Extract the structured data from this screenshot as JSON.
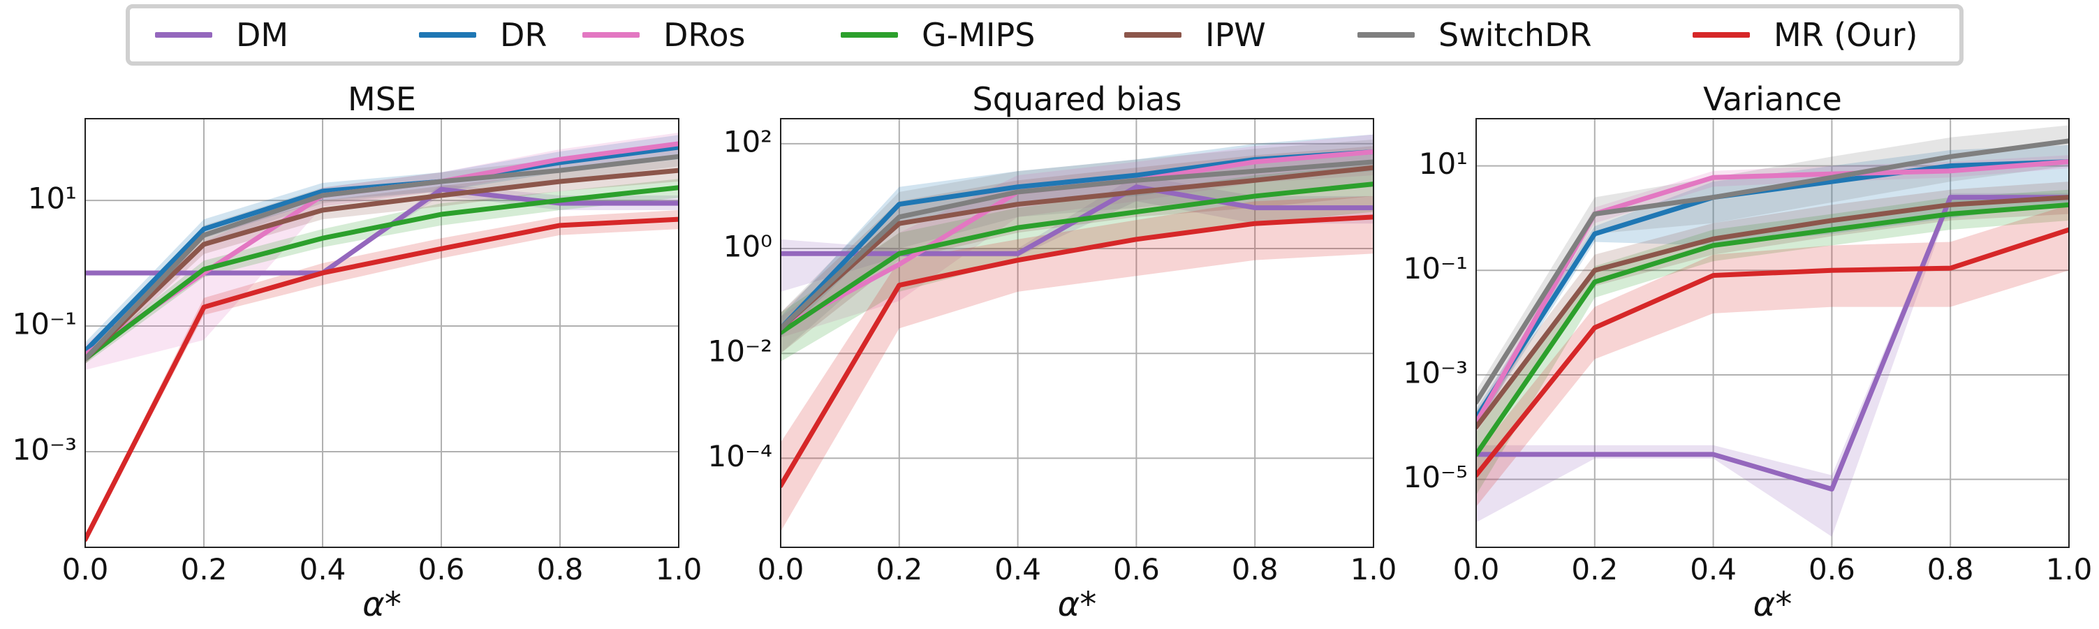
{
  "legend": {
    "items": [
      {
        "label": "DM",
        "color": "#9467bd"
      },
      {
        "label": "DR",
        "color": "#1f77b4"
      },
      {
        "label": "DRos",
        "color": "#e377c2"
      },
      {
        "label": "G-MIPS",
        "color": "#2ca02c"
      },
      {
        "label": "IPW",
        "color": "#8c564b"
      },
      {
        "label": "SwitchDR",
        "color": "#7f7f7f"
      },
      {
        "label": "MR (Our)",
        "color": "#d62728"
      }
    ]
  },
  "chart_data": [
    {
      "type": "line",
      "title": "MSE",
      "xlabel": "α*",
      "ylabel": "",
      "yscale": "log",
      "x": [
        0.0,
        0.2,
        0.4,
        0.6,
        0.8,
        1.0
      ],
      "xticks": [
        "0.0",
        "0.2",
        "0.4",
        "0.6",
        "0.8",
        "1.0"
      ],
      "xlim": [
        0,
        1
      ],
      "ylim": [
        3e-05,
        200
      ],
      "yticks": [
        {
          "value": 0.001,
          "label": "10⁻³"
        },
        {
          "value": 0.1,
          "label": "10⁻¹"
        },
        {
          "value": 10,
          "label": "10¹"
        }
      ],
      "grid": true,
      "series": [
        {
          "name": "DM",
          "values": [
            0.7,
            0.7,
            0.7,
            15,
            9,
            9
          ],
          "band": [
            [
              0.7,
              0.7
            ],
            [
              0.7,
              0.7
            ],
            [
              0.7,
              0.7
            ],
            [
              12,
              18
            ],
            [
              7,
              12
            ],
            [
              7,
              12
            ]
          ]
        },
        {
          "name": "DR",
          "values": [
            0.04,
            3.5,
            14,
            20,
            40,
            70
          ],
          "band": [
            [
              0.03,
              0.055
            ],
            [
              2.5,
              5
            ],
            [
              10,
              19
            ],
            [
              14,
              28
            ],
            [
              28,
              60
            ],
            [
              45,
              110
            ]
          ]
        },
        {
          "name": "DRos",
          "values": [
            0.035,
            0.7,
            12,
            20,
            45,
            80
          ],
          "band": [
            [
              0.02,
              0.05
            ],
            [
              0.06,
              2.2
            ],
            [
              8,
              16
            ],
            [
              14,
              28
            ],
            [
              32,
              65
            ],
            [
              55,
              120
            ]
          ]
        },
        {
          "name": "G-MIPS",
          "values": [
            0.03,
            0.8,
            2.5,
            6,
            10,
            16
          ],
          "band": [
            [
              0.025,
              0.035
            ],
            [
              0.6,
              1.1
            ],
            [
              1.8,
              3.5
            ],
            [
              4,
              9
            ],
            [
              7,
              14
            ],
            [
              11,
              22
            ]
          ]
        },
        {
          "name": "IPW",
          "values": [
            0.03,
            2,
            7,
            12,
            20,
            30
          ],
          "band": [
            [
              0.025,
              0.04
            ],
            [
              1.4,
              2.8
            ],
            [
              5,
              10
            ],
            [
              8,
              17
            ],
            [
              14,
              28
            ],
            [
              20,
              45
            ]
          ]
        },
        {
          "name": "SwitchDR",
          "values": [
            0.03,
            2.8,
            12,
            20,
            30,
            50
          ],
          "band": [
            [
              0.025,
              0.04
            ],
            [
              2,
              4
            ],
            [
              9,
              16
            ],
            [
              14,
              28
            ],
            [
              20,
              45
            ],
            [
              35,
              75
            ]
          ]
        },
        {
          "name": "MR (Our)",
          "values": [
            4e-05,
            0.2,
            0.7,
            1.7,
            4,
            5
          ],
          "band": [
            [
              3.5e-05,
              4.5e-05
            ],
            [
              0.15,
              0.28
            ],
            [
              0.45,
              1
            ],
            [
              1.2,
              2.5
            ],
            [
              2.8,
              5.5
            ],
            [
              3.5,
              7
            ]
          ]
        }
      ]
    },
    {
      "type": "line",
      "title": "Squared bias",
      "xlabel": "α*",
      "ylabel": "",
      "yscale": "log",
      "x": [
        0.0,
        0.2,
        0.4,
        0.6,
        0.8,
        1.0
      ],
      "xticks": [
        "0.0",
        "0.2",
        "0.4",
        "0.6",
        "0.8",
        "1.0"
      ],
      "xlim": [
        0,
        1
      ],
      "ylim": [
        2e-06,
        300
      ],
      "yticks": [
        {
          "value": 0.0001,
          "label": "10⁻⁴"
        },
        {
          "value": 0.01,
          "label": "10⁻²"
        },
        {
          "value": 1,
          "label": "10⁰"
        },
        {
          "value": 100,
          "label": "10²"
        }
      ],
      "grid": true,
      "series": [
        {
          "name": "DM",
          "values": [
            0.8,
            0.8,
            0.8,
            15,
            6,
            6
          ],
          "band": [
            [
              0.15,
              1.5
            ],
            [
              0.7,
              1
            ],
            [
              0.7,
              1
            ],
            [
              8,
              25
            ],
            [
              3,
              10
            ],
            [
              3,
              10
            ]
          ]
        },
        {
          "name": "DR",
          "values": [
            0.03,
            7,
            15,
            25,
            50,
            70
          ],
          "band": [
            [
              0.02,
              0.05
            ],
            [
              3,
              15
            ],
            [
              7,
              30
            ],
            [
              10,
              50
            ],
            [
              20,
              100
            ],
            [
              30,
              150
            ]
          ]
        },
        {
          "name": "DRos",
          "values": [
            0.03,
            0.5,
            12,
            20,
            45,
            70
          ],
          "band": [
            [
              0.02,
              0.05
            ],
            [
              0.1,
              2
            ],
            [
              4,
              25
            ],
            [
              8,
              45
            ],
            [
              18,
              90
            ],
            [
              25,
              150
            ]
          ]
        },
        {
          "name": "G-MIPS",
          "values": [
            0.025,
            0.8,
            2.5,
            5,
            10,
            17
          ],
          "band": [
            [
              0.007,
              0.06
            ],
            [
              0.15,
              2
            ],
            [
              0.6,
              6
            ],
            [
              1.5,
              12
            ],
            [
              3,
              25
            ],
            [
              5,
              40
            ]
          ]
        },
        {
          "name": "IPW",
          "values": [
            0.03,
            3,
            7,
            12,
            20,
            35
          ],
          "band": [
            [
              0.01,
              0.06
            ],
            [
              0.6,
              8
            ],
            [
              2,
              20
            ],
            [
              4,
              35
            ],
            [
              6,
              60
            ],
            [
              10,
              90
            ]
          ]
        },
        {
          "name": "SwitchDR",
          "values": [
            0.03,
            4,
            12,
            20,
            30,
            45
          ],
          "band": [
            [
              0.01,
              0.06
            ],
            [
              1,
              12
            ],
            [
              4,
              30
            ],
            [
              6,
              50
            ],
            [
              10,
              80
            ],
            [
              15,
              120
            ]
          ]
        },
        {
          "name": "MR (Our)",
          "values": [
            3e-05,
            0.2,
            0.6,
            1.5,
            3,
            4
          ],
          "band": [
            [
              4e-06,
              0.0002
            ],
            [
              0.03,
              0.6
            ],
            [
              0.15,
              1.5
            ],
            [
              0.3,
              3.5
            ],
            [
              0.6,
              8
            ],
            [
              0.8,
              10
            ]
          ]
        }
      ]
    },
    {
      "type": "line",
      "title": "Variance",
      "xlabel": "α*",
      "ylabel": "",
      "yscale": "log",
      "x": [
        0.0,
        0.2,
        0.4,
        0.6,
        0.8,
        1.0
      ],
      "xticks": [
        "0.0",
        "0.2",
        "0.4",
        "0.6",
        "0.8",
        "1.0"
      ],
      "xlim": [
        0,
        1
      ],
      "ylim": [
        5e-07,
        80
      ],
      "yticks": [
        {
          "value": 1e-05,
          "label": "10⁻⁵"
        },
        {
          "value": 0.001,
          "label": "10⁻³"
        },
        {
          "value": 0.1,
          "label": "10⁻¹"
        },
        {
          "value": 10,
          "label": "10¹"
        }
      ],
      "grid": true,
      "series": [
        {
          "name": "DM",
          "values": [
            3e-05,
            3e-05,
            3e-05,
            6.5e-06,
            2.5,
            2.5
          ],
          "band": [
            [
              1.5e-06,
              4.5e-05
            ],
            [
              2.5e-05,
              4.5e-05
            ],
            [
              2.5e-05,
              4.5e-05
            ],
            [
              8e-07,
              1.2e-05
            ],
            [
              2,
              3
            ],
            [
              2,
              3
            ]
          ]
        },
        {
          "name": "DR",
          "values": [
            0.00015,
            0.5,
            2.5,
            5,
            10,
            12
          ],
          "band": [
            [
              0.0001,
              0.00022
            ],
            [
              0.35,
              0.7
            ],
            [
              0.3,
              5
            ],
            [
              0.5,
              10
            ],
            [
              1,
              20
            ],
            [
              2,
              25
            ]
          ]
        },
        {
          "name": "DRos",
          "values": [
            0.00012,
            1.2,
            6,
            7,
            8,
            12
          ],
          "band": [
            [
              8e-05,
              0.00018
            ],
            [
              0.8,
              1.6
            ],
            [
              4,
              8
            ],
            [
              5,
              10
            ],
            [
              6,
              12
            ],
            [
              9,
              16
            ]
          ]
        },
        {
          "name": "G-MIPS",
          "values": [
            3e-05,
            0.06,
            0.3,
            0.6,
            1.2,
            1.8
          ],
          "band": [
            [
              5e-06,
              8e-05
            ],
            [
              0.03,
              0.12
            ],
            [
              0.15,
              0.6
            ],
            [
              0.3,
              1.2
            ],
            [
              0.6,
              2.5
            ],
            [
              0.9,
              3.5
            ]
          ]
        },
        {
          "name": "IPW",
          "values": [
            0.0001,
            0.1,
            0.4,
            0.9,
            1.8,
            2.5
          ],
          "band": [
            [
              3e-05,
              0.0002
            ],
            [
              0.05,
              0.2
            ],
            [
              0.2,
              0.8
            ],
            [
              0.45,
              1.8
            ],
            [
              0.9,
              3.5
            ],
            [
              1.2,
              5
            ]
          ]
        },
        {
          "name": "SwitchDR",
          "values": [
            0.0003,
            1.2,
            2.5,
            6,
            15,
            30
          ],
          "band": [
            [
              0.0001,
              0.0005
            ],
            [
              0.5,
              2.5
            ],
            [
              0.8,
              6
            ],
            [
              2,
              15
            ],
            [
              5,
              35
            ],
            [
              10,
              60
            ]
          ]
        },
        {
          "name": "MR (Our)",
          "values": [
            1.2e-05,
            0.008,
            0.08,
            0.1,
            0.11,
            0.6
          ],
          "band": [
            [
              3e-06,
              3e-05
            ],
            [
              0.002,
              0.02
            ],
            [
              0.015,
              0.2
            ],
            [
              0.02,
              0.3
            ],
            [
              0.02,
              0.35
            ],
            [
              0.1,
              1.8
            ]
          ]
        }
      ]
    }
  ]
}
